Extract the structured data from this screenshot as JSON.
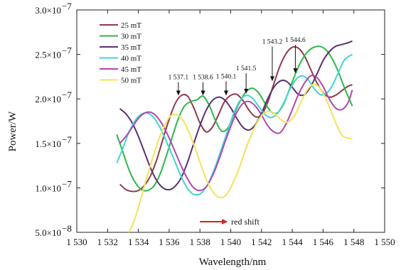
{
  "chart_data": {
    "type": "line",
    "xlabel": "Wavelength/nm",
    "ylabel": "Power/W",
    "xlim": [
      1530,
      1550
    ],
    "ylim": [
      5e-08,
      3e-07
    ],
    "x_ticks": [
      {
        "value": 1530,
        "label": "1 530"
      },
      {
        "value": 1532,
        "label": "1 532"
      },
      {
        "value": 1534,
        "label": "1 534"
      },
      {
        "value": 1536,
        "label": "1 536"
      },
      {
        "value": 1538,
        "label": "1 538"
      },
      {
        "value": 1540,
        "label": "1 540"
      },
      {
        "value": 1542,
        "label": "1 542"
      },
      {
        "value": 1544,
        "label": "1 544"
      },
      {
        "value": 1546,
        "label": "1 546"
      },
      {
        "value": 1548,
        "label": "1 548"
      },
      {
        "value": 1550,
        "label": "1 550"
      }
    ],
    "y_ticks": [
      {
        "value": 5e-08,
        "label": "5.0×10",
        "exp": "−8"
      },
      {
        "value": 1e-07,
        "label": "1.0×10",
        "exp": "−7"
      },
      {
        "value": 1.5e-07,
        "label": "1.5×10",
        "exp": "−7"
      },
      {
        "value": 2e-07,
        "label": "2.0×10",
        "exp": "−7"
      },
      {
        "value": 2.5e-07,
        "label": "2.5×10",
        "exp": "−7"
      },
      {
        "value": 3e-07,
        "label": "3.0×10",
        "exp": "−7"
      }
    ],
    "grid": false,
    "legend_position": "top-left",
    "series": [
      {
        "name": "25 mT",
        "color": "#8e3b4b",
        "x": [
          1532.8,
          1533.2,
          1533.6,
          1534,
          1534.4,
          1534.8,
          1535.2,
          1535.6,
          1536,
          1536.4,
          1536.8,
          1537.2,
          1537.6,
          1538,
          1538.4,
          1538.8,
          1539.2,
          1539.6,
          1540,
          1540.4,
          1540.8,
          1541.2,
          1541.6,
          1542,
          1542.4,
          1542.8,
          1543.2,
          1543.6,
          1544,
          1544.4,
          1544.8,
          1545.2,
          1545.6,
          1546,
          1546.4,
          1546.8,
          1547.2,
          1547.6,
          1547.9
        ],
        "y": [
          1.04e-07,
          9.8e-08,
          9.6e-08,
          9.7e-08,
          1.03e-07,
          1.14e-07,
          1.32e-07,
          1.55e-07,
          1.77e-07,
          1.95e-07,
          2.04e-07,
          2.03e-07,
          1.9e-07,
          1.73e-07,
          1.63e-07,
          1.68e-07,
          1.82e-07,
          1.97e-07,
          2.04e-07,
          2.05e-07,
          1.98e-07,
          1.87e-07,
          1.8e-07,
          1.82e-07,
          1.96e-07,
          2.17e-07,
          2.37e-07,
          2.51e-07,
          2.58e-07,
          2.57e-07,
          2.48e-07,
          2.33e-07,
          2.18e-07,
          2.07e-07,
          2.02e-07,
          2.04e-07,
          2.09e-07,
          2.14e-07,
          2.16e-07
        ]
      },
      {
        "name": "30 mT",
        "color": "#2db84a",
        "x": [
          1532.6,
          1533,
          1533.4,
          1533.8,
          1534.2,
          1534.6,
          1535,
          1535.4,
          1535.8,
          1536.2,
          1536.6,
          1537,
          1537.4,
          1537.8,
          1538.2,
          1538.6,
          1539,
          1539.4,
          1539.8,
          1540.2,
          1540.6,
          1541,
          1541.4,
          1541.8,
          1542.2,
          1542.6,
          1543,
          1543.4,
          1543.8,
          1544.2,
          1544.6,
          1545,
          1545.4,
          1545.8,
          1546.2,
          1546.6,
          1547,
          1547.4,
          1547.9
        ],
        "y": [
          1.6e-07,
          1.4e-07,
          1.2e-07,
          1.06e-07,
          9.8e-08,
          9.7e-08,
          1.02e-07,
          1.15e-07,
          1.35e-07,
          1.57e-07,
          1.78e-07,
          1.92e-07,
          1.97e-07,
          1.99e-07,
          2.03e-07,
          1.93e-07,
          1.76e-07,
          1.64e-07,
          1.67e-07,
          1.82e-07,
          1.97e-07,
          2.08e-07,
          2.12e-07,
          2.07e-07,
          1.96e-07,
          1.86e-07,
          1.84e-07,
          1.93e-07,
          2.1e-07,
          2.28e-07,
          2.43e-07,
          2.53e-07,
          2.58e-07,
          2.59e-07,
          2.55e-07,
          2.45e-07,
          2.3e-07,
          2.12e-07,
          1.92e-07
        ]
      },
      {
        "name": "35 mT",
        "color": "#5b3070",
        "x": [
          1532.8,
          1533.2,
          1533.6,
          1534,
          1534.4,
          1534.8,
          1535.2,
          1535.6,
          1536,
          1536.4,
          1536.8,
          1537.2,
          1537.6,
          1538,
          1538.4,
          1538.8,
          1539.2,
          1539.6,
          1540,
          1540.4,
          1540.8,
          1541.2,
          1541.6,
          1542,
          1542.4,
          1542.8,
          1543.2,
          1543.6,
          1544,
          1544.4,
          1544.8,
          1545.2,
          1545.6,
          1546,
          1546.4,
          1546.8,
          1547.2,
          1547.6,
          1547.9
        ],
        "y": [
          1.89e-07,
          1.83e-07,
          1.73e-07,
          1.58e-07,
          1.4e-07,
          1.22e-07,
          1.08e-07,
          1e-07,
          9.8e-08,
          1.02e-07,
          1.12e-07,
          1.29e-07,
          1.5e-07,
          1.7e-07,
          1.87e-07,
          1.98e-07,
          2.02e-07,
          1.99e-07,
          1.9e-07,
          1.78e-07,
          1.68e-07,
          1.65e-07,
          1.71e-07,
          1.84e-07,
          2e-07,
          2.13e-07,
          2.2e-07,
          2.2e-07,
          2.13e-07,
          2.05e-07,
          2.05e-07,
          2.14e-07,
          2.28e-07,
          2.43e-07,
          2.53e-07,
          2.59e-07,
          2.61e-07,
          2.63e-07,
          2.65e-07
        ]
      },
      {
        "name": "40 mT",
        "color": "#3fd6d0",
        "x": [
          1532.6,
          1533,
          1533.4,
          1533.8,
          1534.2,
          1534.6,
          1535,
          1535.4,
          1535.8,
          1536.2,
          1536.6,
          1537,
          1537.4,
          1537.8,
          1538.2,
          1538.6,
          1539,
          1539.4,
          1539.8,
          1540.2,
          1540.6,
          1541,
          1541.4,
          1541.8,
          1542.2,
          1542.6,
          1543,
          1543.4,
          1543.8,
          1544.2,
          1544.6,
          1545,
          1545.4,
          1545.8,
          1546.2,
          1546.6,
          1547,
          1547.4,
          1547.9
        ],
        "y": [
          1.28e-07,
          1.45e-07,
          1.63e-07,
          1.76e-07,
          1.83e-07,
          1.84e-07,
          1.79e-07,
          1.68e-07,
          1.53e-07,
          1.37e-07,
          1.2e-07,
          1.05e-07,
          9.5e-08,
          9.2e-08,
          9.6e-08,
          1.07e-07,
          1.24e-07,
          1.44e-07,
          1.64e-07,
          1.84e-07,
          1.98e-07,
          2.04e-07,
          2.01e-07,
          1.92e-07,
          1.83e-07,
          1.79e-07,
          1.83e-07,
          1.94e-07,
          2.09e-07,
          2.21e-07,
          2.26e-07,
          2.22e-07,
          2.12e-07,
          2.05e-07,
          2.06e-07,
          2.15e-07,
          2.3e-07,
          2.44e-07,
          2.5e-07
        ]
      },
      {
        "name": "45 mT",
        "color": "#b246b0",
        "x": [
          1532.8,
          1533.2,
          1533.6,
          1534,
          1534.4,
          1534.8,
          1535.2,
          1535.6,
          1536,
          1536.4,
          1536.8,
          1537.2,
          1537.6,
          1538,
          1538.4,
          1538.8,
          1539.2,
          1539.6,
          1540,
          1540.4,
          1540.8,
          1541.2,
          1541.6,
          1542,
          1542.4,
          1542.8,
          1543.2,
          1543.6,
          1544,
          1544.4,
          1544.8,
          1545.2,
          1545.6,
          1546,
          1546.4,
          1546.8,
          1547.2,
          1547.6,
          1547.9
        ],
        "y": [
          1.5e-07,
          1.58e-07,
          1.68e-07,
          1.78e-07,
          1.84e-07,
          1.85e-07,
          1.8e-07,
          1.7e-07,
          1.56e-07,
          1.4e-07,
          1.24e-07,
          1.1e-07,
          1e-07,
          9.7e-08,
          1.01e-07,
          1.13e-07,
          1.3e-07,
          1.5e-07,
          1.69e-07,
          1.85e-07,
          1.95e-07,
          1.97e-07,
          1.92e-07,
          1.82e-07,
          1.7e-07,
          1.63e-07,
          1.62e-07,
          1.72e-07,
          1.88e-07,
          2.05e-07,
          2.18e-07,
          2.26e-07,
          2.24e-07,
          2.14e-07,
          2e-07,
          1.9e-07,
          1.88e-07,
          1.95e-07,
          2.1e-07
        ]
      },
      {
        "name": "50 mT",
        "color": "#f0e35a",
        "x": [
          1533.3,
          1533.7,
          1534.1,
          1534.5,
          1534.9,
          1535.3,
          1535.7,
          1536.1,
          1536.5,
          1536.9,
          1537.3,
          1537.7,
          1538.1,
          1538.5,
          1538.9,
          1539.3,
          1539.7,
          1540.1,
          1540.5,
          1540.9,
          1541.3,
          1541.7,
          1542.1,
          1542.5,
          1542.9,
          1543.3,
          1543.7,
          1544.1,
          1544.5,
          1544.9,
          1545.3,
          1545.7,
          1546.1,
          1546.5,
          1546.9,
          1547.3,
          1547.9
        ],
        "y": [
          4.8e-08,
          6.2e-08,
          8.4e-08,
          1.09e-07,
          1.32e-07,
          1.53e-07,
          1.7e-07,
          1.81e-07,
          1.82e-07,
          1.76e-07,
          1.62e-07,
          1.44e-07,
          1.24e-07,
          1.06e-07,
          9.4e-08,
          8.9e-08,
          9.2e-08,
          1.04e-07,
          1.2e-07,
          1.4e-07,
          1.58e-07,
          1.73e-07,
          1.83e-07,
          1.86e-07,
          1.83e-07,
          1.76e-07,
          1.74e-07,
          1.8e-07,
          1.94e-07,
          2.08e-07,
          2.16e-07,
          2.14e-07,
          2.03e-07,
          1.87e-07,
          1.7e-07,
          1.58e-07,
          1.55e-07
        ]
      }
    ],
    "annotations": [
      {
        "label": "1 537.1",
        "x": 1536.6,
        "y": 2.03e-07,
        "label_y": 2.22e-07
      },
      {
        "label": "1 538.6",
        "x": 1538.2,
        "y": 2.03e-07,
        "label_y": 2.22e-07
      },
      {
        "label": "1 540.1",
        "x": 1539.7,
        "y": 2.03e-07,
        "label_y": 2.23e-07
      },
      {
        "label": "1 541.5",
        "x": 1541.0,
        "y": 2.05e-07,
        "label_y": 2.32e-07
      },
      {
        "label": "1 543.2",
        "x": 1542.7,
        "y": 2.19e-07,
        "label_y": 2.62e-07
      },
      {
        "label": "1 544.6",
        "x": 1544.2,
        "y": 2.28e-07,
        "label_y": 2.64e-07
      }
    ],
    "shift_label": {
      "text": "red shift",
      "x_start": 1538.0,
      "x_end": 1539.8,
      "y": 6.2e-08
    }
  }
}
